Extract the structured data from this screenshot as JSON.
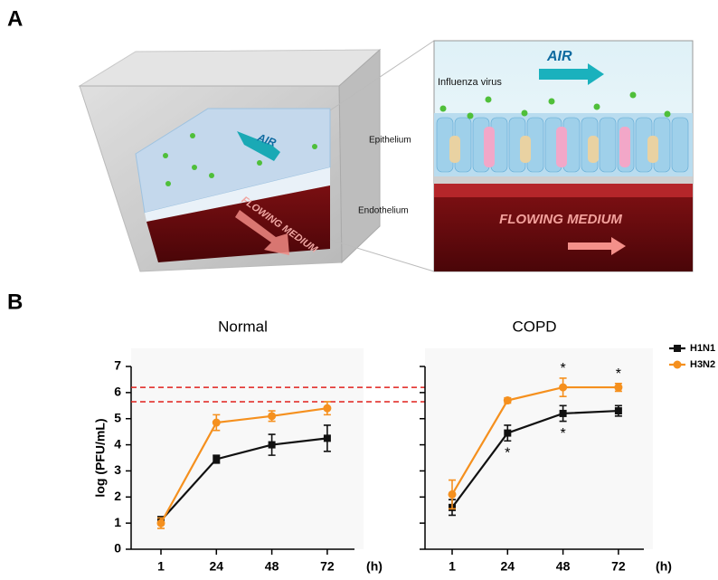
{
  "panel_labels": [
    "A",
    "B"
  ],
  "illustration": {
    "chip_air": "AIR",
    "chip_medium": "FLOWING MEDIUM",
    "inset_air": "AIR",
    "virus": "Influenza virus",
    "epithelium": "Epithelium",
    "endothelium": "Endothelium",
    "inset_medium": "FLOWING MEDIUM"
  },
  "chart_data": [
    {
      "type": "line",
      "title": "Normal",
      "xlabel": "(h)",
      "ylabel": "log (PFU/mL)",
      "categories": [
        "1",
        "24",
        "48",
        "72"
      ],
      "ylim": [
        0,
        7
      ],
      "yticks": [
        0,
        1,
        2,
        3,
        4,
        5,
        6,
        7
      ],
      "show_ytick_labels": true,
      "reference_lines": {
        "values": [
          5.65,
          6.2
        ],
        "color": "#e0201c"
      },
      "series": [
        {
          "color": "#111111",
          "marker": "square",
          "values": [
            1.1,
            3.45,
            4.0,
            4.25
          ],
          "errors": [
            0.15,
            0.15,
            0.4,
            0.5
          ]
        },
        {
          "color": "#f5901e",
          "marker": "circle",
          "values": [
            1.0,
            4.85,
            5.1,
            5.4
          ],
          "errors": [
            0.2,
            0.3,
            0.2,
            0.25
          ]
        }
      ]
    },
    {
      "type": "line",
      "title": "COPD",
      "xlabel": "(h)",
      "categories": [
        "1",
        "24",
        "48",
        "72"
      ],
      "ylim": [
        0,
        7
      ],
      "yticks": [
        0,
        1,
        2,
        3,
        4,
        5,
        6,
        7
      ],
      "show_ytick_labels": false,
      "legend": "right",
      "series": [
        {
          "name": "H1N1",
          "color": "#111111",
          "marker": "square",
          "values": [
            1.6,
            4.45,
            5.2,
            5.3
          ],
          "errors": [
            0.3,
            0.3,
            0.3,
            0.2
          ],
          "significance": [
            null,
            "*",
            "*",
            null
          ],
          "significance_position": "below"
        },
        {
          "name": "H3N2",
          "color": "#f5901e",
          "marker": "circle",
          "values": [
            2.1,
            5.7,
            6.2,
            6.2
          ],
          "errors": [
            0.55,
            0.1,
            0.35,
            0.15
          ],
          "significance": [
            null,
            null,
            "*",
            "*"
          ],
          "significance_position": "above"
        }
      ]
    }
  ]
}
